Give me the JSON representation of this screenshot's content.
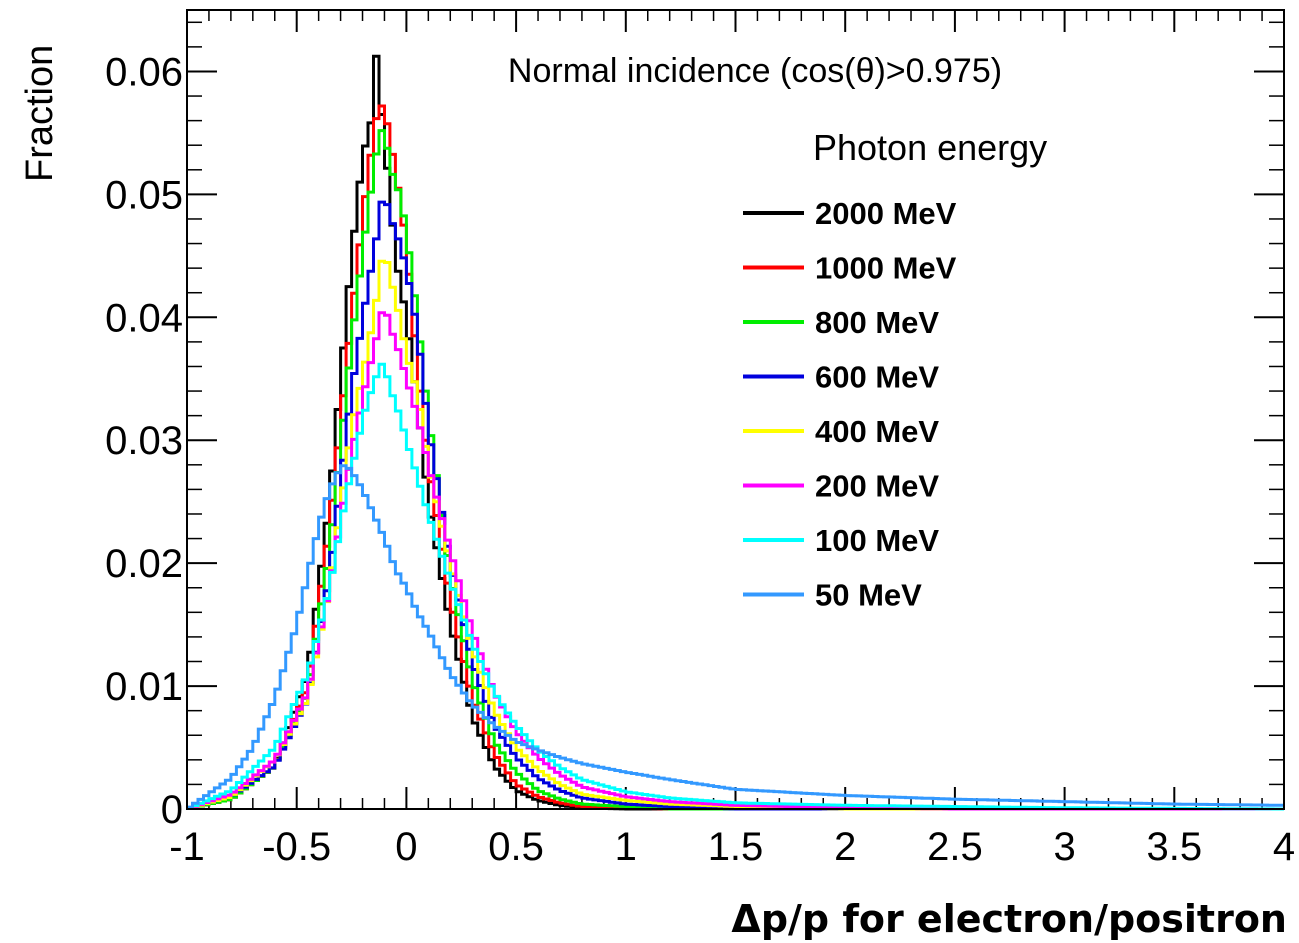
{
  "chart_data": {
    "type": "line",
    "title": "Normal incidence (cos(θ)>0.975)",
    "xlabel": "Δp/p for electron/positron",
    "ylabel": "Fraction",
    "xlim": [
      -1,
      4
    ],
    "ylim": [
      0,
      0.065
    ],
    "xticks": [
      "-1",
      "-0.5",
      "0",
      "0.5",
      "1",
      "1.5",
      "2",
      "2.5",
      "3",
      "3.5",
      "4"
    ],
    "yticks": [
      "0",
      "0.01",
      "0.02",
      "0.03",
      "0.04",
      "0.05",
      "0.06"
    ],
    "grid": false,
    "legend_title": "Photon energy",
    "legend_position": "top-right",
    "series": [
      {
        "name": "2000 MeV",
        "color": "#000000",
        "x": [
          -1.0,
          -0.8,
          -0.6,
          -0.45,
          -0.35,
          -0.25,
          -0.2,
          -0.16,
          -0.14,
          -0.12,
          -0.1,
          -0.08,
          -0.05,
          0.0,
          0.05,
          0.1,
          0.2,
          0.3,
          0.4,
          0.5,
          0.6,
          0.7,
          0.8,
          1.0
        ],
        "values": [
          0.0,
          0.0008,
          0.0035,
          0.011,
          0.025,
          0.045,
          0.053,
          0.056,
          0.0617,
          0.058,
          0.054,
          0.051,
          0.045,
          0.04,
          0.033,
          0.025,
          0.015,
          0.0075,
          0.0035,
          0.0015,
          0.0007,
          0.0003,
          0.0001,
          0.0
        ]
      },
      {
        "name": "1000 MeV",
        "color": "#ff0000",
        "x": [
          -1.0,
          -0.8,
          -0.6,
          -0.45,
          -0.35,
          -0.25,
          -0.18,
          -0.14,
          -0.12,
          -0.1,
          -0.08,
          -0.05,
          0.0,
          0.05,
          0.1,
          0.2,
          0.3,
          0.4,
          0.5,
          0.6,
          0.7,
          0.8,
          1.0,
          1.2
        ],
        "values": [
          0.0,
          0.0008,
          0.0035,
          0.01,
          0.023,
          0.04,
          0.051,
          0.056,
          0.0573,
          0.057,
          0.055,
          0.052,
          0.046,
          0.036,
          0.028,
          0.017,
          0.009,
          0.0045,
          0.002,
          0.001,
          0.0005,
          0.0002,
          0.0001,
          0.0
        ]
      },
      {
        "name": "800 MeV",
        "color": "#00ee00",
        "x": [
          -1.0,
          -0.8,
          -0.6,
          -0.45,
          -0.35,
          -0.25,
          -0.18,
          -0.14,
          -0.12,
          -0.1,
          -0.07,
          -0.03,
          0.0,
          0.05,
          0.1,
          0.2,
          0.3,
          0.4,
          0.5,
          0.6,
          0.7,
          0.8,
          1.0,
          1.2
        ],
        "values": [
          0.0,
          0.0008,
          0.0035,
          0.0095,
          0.021,
          0.038,
          0.048,
          0.053,
          0.0553,
          0.055,
          0.052,
          0.05,
          0.047,
          0.04,
          0.032,
          0.019,
          0.0105,
          0.0055,
          0.003,
          0.0015,
          0.0008,
          0.0004,
          0.0002,
          0.0
        ]
      },
      {
        "name": "600 MeV",
        "color": "#0000dd",
        "x": [
          -1.0,
          -0.8,
          -0.6,
          -0.45,
          -0.35,
          -0.25,
          -0.18,
          -0.14,
          -0.12,
          -0.1,
          -0.07,
          -0.03,
          0.0,
          0.05,
          0.1,
          0.2,
          0.3,
          0.4,
          0.5,
          0.6,
          0.7,
          0.8,
          1.0,
          1.2,
          1.5
        ],
        "values": [
          0.0,
          0.001,
          0.0035,
          0.009,
          0.019,
          0.034,
          0.042,
          0.046,
          0.049,
          0.05,
          0.048,
          0.046,
          0.044,
          0.039,
          0.031,
          0.02,
          0.012,
          0.0068,
          0.0042,
          0.0025,
          0.0015,
          0.0009,
          0.0004,
          0.0002,
          0.0
        ]
      },
      {
        "name": "400 MeV",
        "color": "#ffff00",
        "x": [
          -1.0,
          -0.8,
          -0.6,
          -0.45,
          -0.35,
          -0.25,
          -0.18,
          -0.14,
          -0.12,
          -0.1,
          -0.07,
          -0.03,
          0.0,
          0.05,
          0.1,
          0.2,
          0.3,
          0.4,
          0.5,
          0.6,
          0.7,
          0.8,
          1.0,
          1.2,
          1.5,
          2.0
        ],
        "values": [
          0.0,
          0.001,
          0.004,
          0.009,
          0.018,
          0.031,
          0.037,
          0.041,
          0.044,
          0.0455,
          0.043,
          0.04,
          0.037,
          0.034,
          0.028,
          0.02,
          0.013,
          0.008,
          0.005,
          0.0032,
          0.002,
          0.0012,
          0.0007,
          0.0004,
          0.0002,
          0.0
        ]
      },
      {
        "name": "200 MeV",
        "color": "#ff00ff",
        "x": [
          -1.0,
          -0.8,
          -0.6,
          -0.45,
          -0.35,
          -0.25,
          -0.18,
          -0.14,
          -0.12,
          -0.1,
          -0.07,
          -0.03,
          0.0,
          0.05,
          0.1,
          0.2,
          0.3,
          0.4,
          0.5,
          0.6,
          0.7,
          0.8,
          1.0,
          1.2,
          1.5,
          2.0,
          2.5
        ],
        "values": [
          0.0,
          0.0012,
          0.004,
          0.0095,
          0.018,
          0.029,
          0.035,
          0.038,
          0.04,
          0.041,
          0.039,
          0.037,
          0.035,
          0.032,
          0.028,
          0.021,
          0.0145,
          0.0095,
          0.0063,
          0.0042,
          0.0028,
          0.0018,
          0.001,
          0.0006,
          0.0003,
          0.0001,
          0.0
        ]
      },
      {
        "name": "100 MeV",
        "color": "#00ffff",
        "x": [
          -1.0,
          -0.8,
          -0.6,
          -0.45,
          -0.35,
          -0.28,
          -0.22,
          -0.18,
          -0.14,
          -0.12,
          -0.1,
          -0.07,
          -0.03,
          0.0,
          0.05,
          0.1,
          0.2,
          0.3,
          0.4,
          0.5,
          0.6,
          0.7,
          0.8,
          1.0,
          1.2,
          1.5,
          2.0,
          2.5,
          3.0,
          4.0
        ],
        "values": [
          0.0,
          0.0015,
          0.005,
          0.011,
          0.018,
          0.025,
          0.03,
          0.033,
          0.035,
          0.0363,
          0.036,
          0.034,
          0.032,
          0.03,
          0.027,
          0.024,
          0.0185,
          0.0135,
          0.0095,
          0.0068,
          0.0048,
          0.0034,
          0.0024,
          0.0014,
          0.0009,
          0.0005,
          0.0003,
          0.0002,
          0.0001,
          0.0
        ]
      },
      {
        "name": "50 MeV",
        "color": "#3399ff",
        "x": [
          -1.0,
          -0.8,
          -0.7,
          -0.6,
          -0.5,
          -0.45,
          -0.4,
          -0.35,
          -0.3,
          -0.28,
          -0.25,
          -0.2,
          -0.15,
          -0.1,
          -0.05,
          0.0,
          0.05,
          0.1,
          0.2,
          0.3,
          0.4,
          0.5,
          0.6,
          0.7,
          0.8,
          1.0,
          1.2,
          1.5,
          2.0,
          2.5,
          3.0,
          3.5,
          4.0
        ],
        "values": [
          0.0,
          0.0025,
          0.005,
          0.009,
          0.015,
          0.019,
          0.023,
          0.026,
          0.0278,
          0.028,
          0.0275,
          0.026,
          0.024,
          0.022,
          0.0195,
          0.018,
          0.016,
          0.0145,
          0.011,
          0.0085,
          0.0068,
          0.0055,
          0.0048,
          0.0042,
          0.0037,
          0.003,
          0.0024,
          0.0016,
          0.0011,
          0.0008,
          0.0006,
          0.0004,
          0.0003
        ]
      }
    ]
  }
}
